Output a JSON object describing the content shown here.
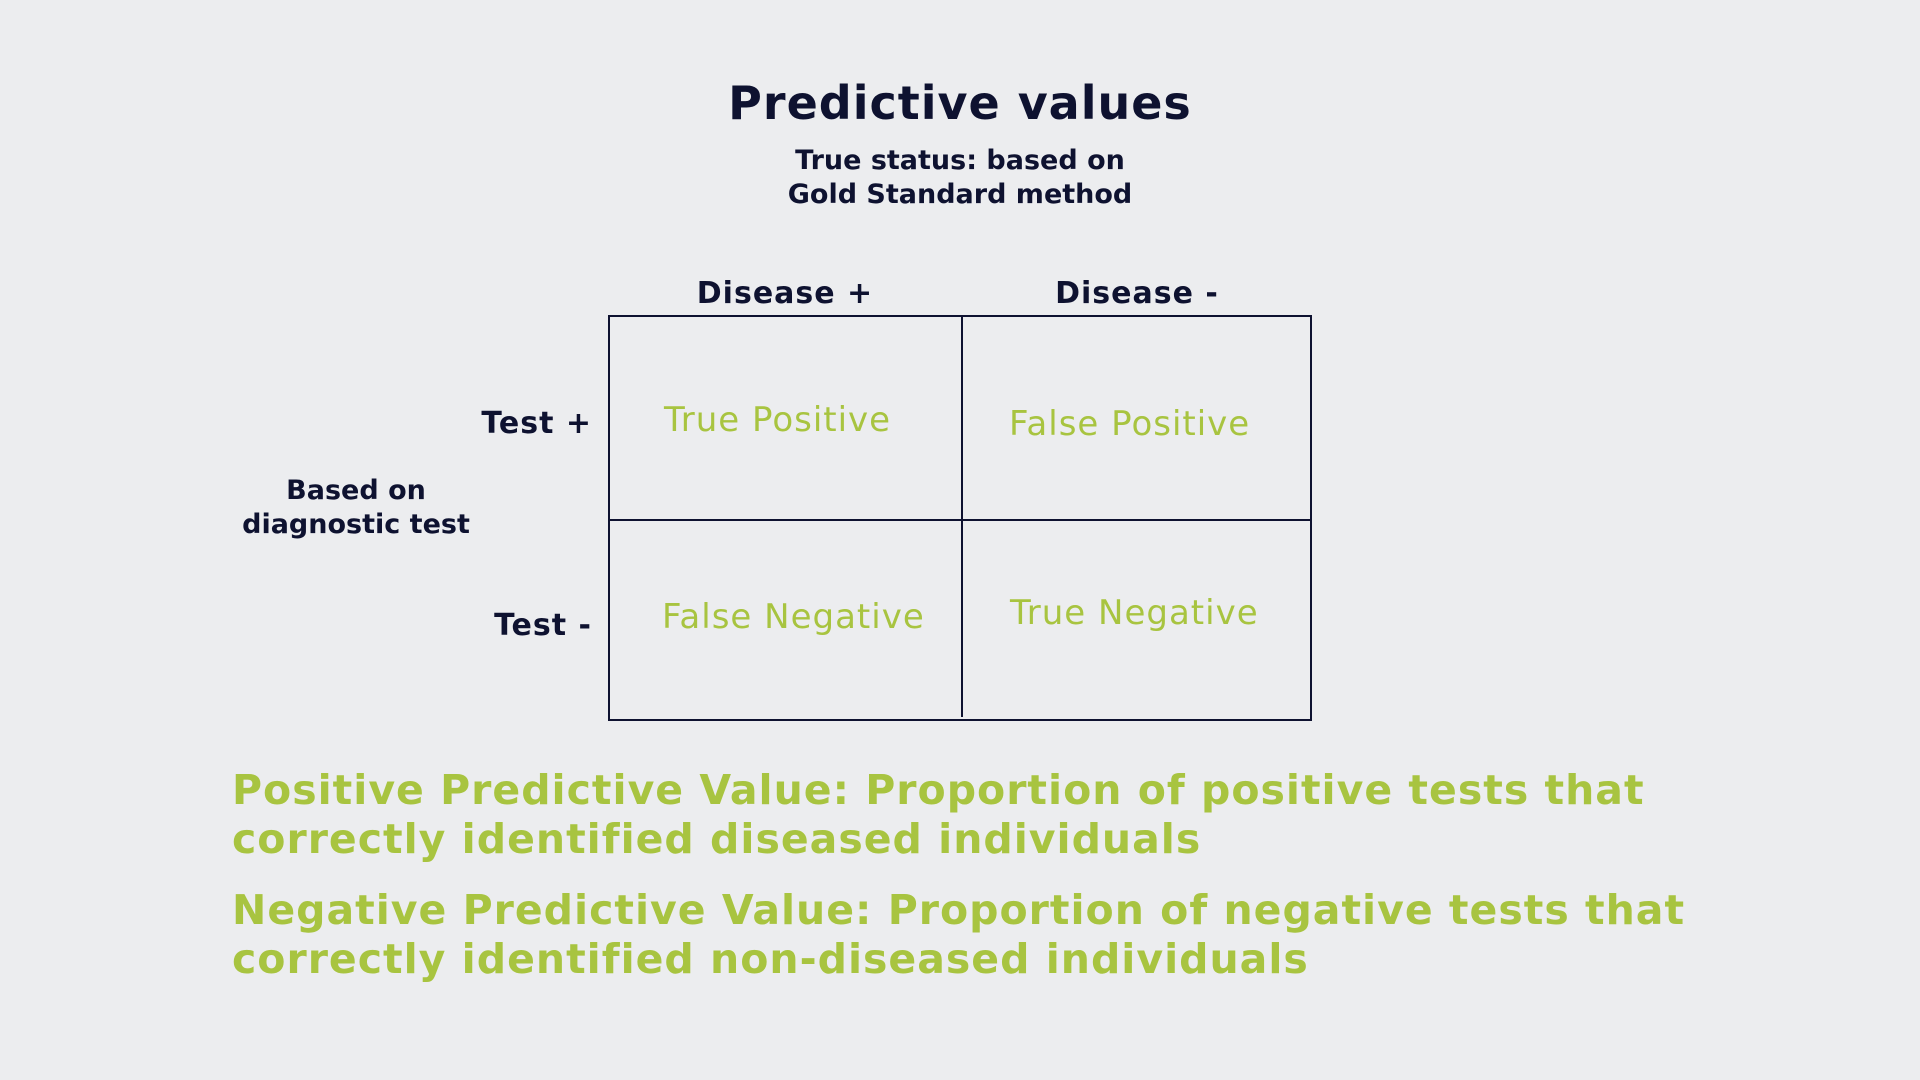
{
  "title": "Predictive values",
  "subtitle": {
    "line1": "True status: based on",
    "line2": "Gold Standard method"
  },
  "columns": {
    "positive": "Disease +",
    "negative": "Disease -"
  },
  "rows": {
    "positive": "Test +",
    "negative": "Test -",
    "axis_label_line1": "Based on",
    "axis_label_line2": "diagnostic test"
  },
  "cells": {
    "true_positive": "True Positive",
    "false_positive": "False Positive",
    "false_negative": "False Negative",
    "true_negative": "True Negative"
  },
  "definitions": {
    "ppv": "Positive Predictive Value: Proportion of positive tests that correctly identified diseased individuals",
    "npv": "Negative Predictive Value: Proportion of negative tests that correctly identified non-diseased individuals"
  },
  "colors": {
    "background": "#ECEDEF",
    "dark_text": "#0E1230",
    "accent_green": "#A8C440"
  }
}
